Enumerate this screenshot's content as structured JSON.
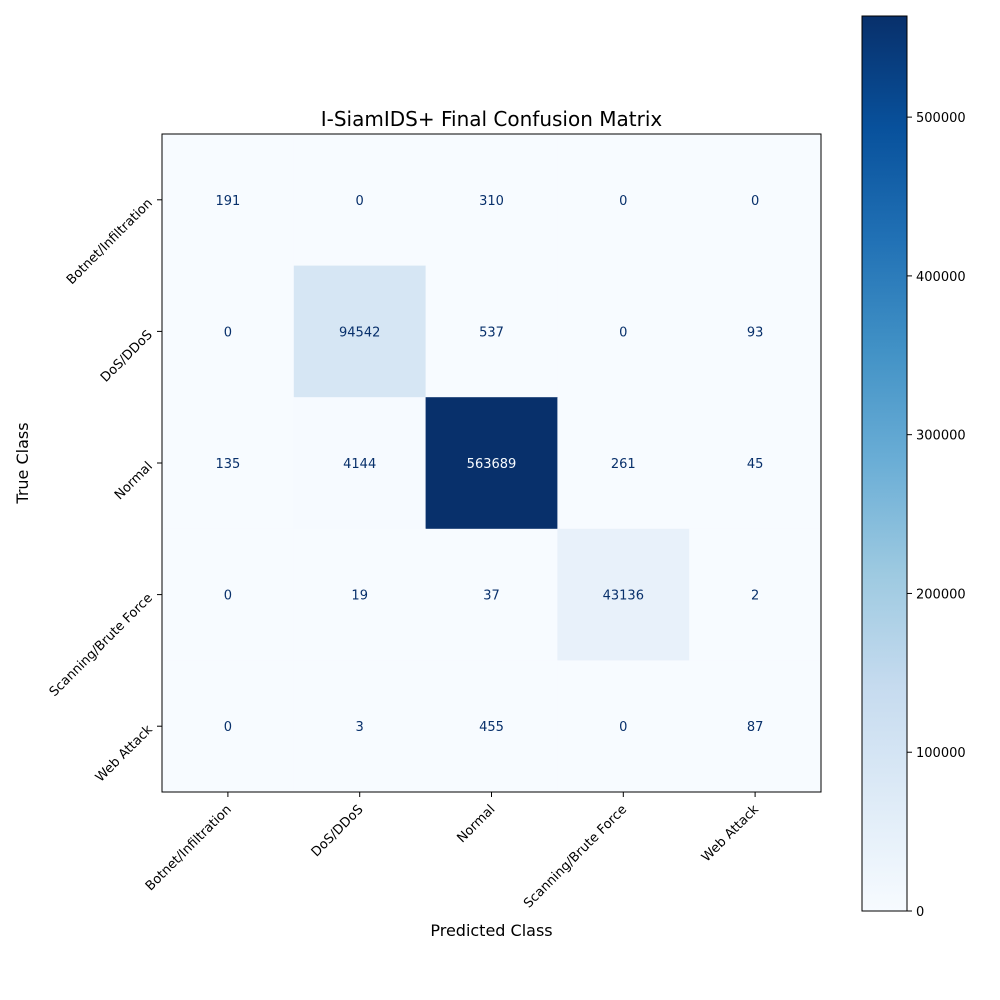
{
  "chart_data": {
    "type": "heatmap",
    "title": "I-SiamIDS+ Final Confusion Matrix",
    "xlabel": "Predicted Class",
    "ylabel": "True Class",
    "x_categories": [
      "Botnet/Infiltration",
      "DoS/DDoS",
      "Normal",
      "Scanning/Brute Force",
      "Web Attack"
    ],
    "y_categories": [
      "Botnet/Infiltration",
      "DoS/DDoS",
      "Normal",
      "Scanning/Brute Force",
      "Web Attack"
    ],
    "matrix": [
      [
        191,
        0,
        310,
        0,
        0
      ],
      [
        0,
        94542,
        537,
        0,
        93
      ],
      [
        135,
        4144,
        563689,
        261,
        45
      ],
      [
        0,
        19,
        37,
        43136,
        2
      ],
      [
        0,
        3,
        455,
        0,
        87
      ]
    ],
    "colormap": "Blues",
    "colorbar": {
      "range": [
        0,
        563689
      ],
      "ticks": [
        0,
        100000,
        200000,
        300000,
        400000,
        500000
      ]
    },
    "colors": {
      "text_on_light": "#08306b",
      "text_on_dark": "#f7fbff"
    }
  }
}
